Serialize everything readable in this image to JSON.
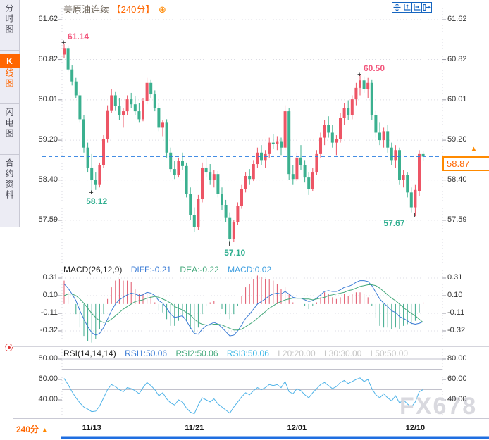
{
  "sidebar": {
    "tabs": [
      {
        "label": "分时图",
        "selected": false
      },
      {
        "label": "K线图",
        "label_head": "K",
        "label_rest": "线图",
        "selected": true
      },
      {
        "label": "闪电图",
        "selected": false
      },
      {
        "label": "合约资料",
        "selected": false
      }
    ]
  },
  "header": {
    "symbol": "美原油连续",
    "period_bracket": "【240分】",
    "expand_glyph": "⊕"
  },
  "toolbar": {
    "icons": [
      "crosshair-move-icon",
      "fit-vertical-axis-icon",
      "fit-horizontal-axis-icon",
      "pan-right-icon"
    ]
  },
  "main_panel": {
    "y_labels": [
      "61.62",
      "60.82",
      "60.01",
      "59.20",
      "58.40",
      "57.59"
    ],
    "current_price": "58.87",
    "current_price_arrow": "▲",
    "annotations": [
      {
        "text": "61.14",
        "price": 61.14,
        "index": 0,
        "color": "pink",
        "placement": "above-right"
      },
      {
        "text": "58.12",
        "price": 58.12,
        "index": 7,
        "color": "green",
        "placement": "below-right"
      },
      {
        "text": "57.10",
        "price": 57.1,
        "index": 42,
        "color": "green",
        "placement": "below-right"
      },
      {
        "text": "60.50",
        "price": 60.5,
        "index": 75,
        "color": "pink",
        "placement": "above-right"
      },
      {
        "text": "57.67",
        "price": 57.67,
        "index": 89,
        "color": "green",
        "placement": "below-left"
      }
    ]
  },
  "macd_panel": {
    "title": "MACD(26,12,9)",
    "diff_label": "DIFF:-0.21",
    "dea_label": "DEA:-0.22",
    "macd_label": "MACD:0.02",
    "y_labels": [
      "0.31",
      "0.10",
      "-0.11",
      "-0.32"
    ]
  },
  "rsi_panel": {
    "title": "RSI(14,14,14)",
    "rsi1_label": "RSI1:50.06",
    "rsi2_label": "RSI2:50.06",
    "rsi3_label": "RSI3:50.06",
    "l20_label": "L20:20.00",
    "l30_label": "L30:30.00",
    "l50_label": "L50:50.00",
    "y_labels": [
      "80.00",
      "60.00",
      "40.00"
    ],
    "level_lines": [
      80,
      70,
      50,
      30
    ]
  },
  "bottom_bar": {
    "period_label": "240分",
    "arrow": "▲"
  },
  "watermark": "FX678",
  "colors": {
    "up": "#ed5565",
    "down": "#3bb08f",
    "hist_up": "#e0556a",
    "hist_down": "#3aa98a",
    "diff_line": "#3a7bd5",
    "dea_line": "#45a97c",
    "rsi_line": "#4fb3e8",
    "dashed_line": "#2a7de1",
    "accent_orange": "#ff6600",
    "annotation_pink": "#f2567c",
    "annotation_green": "#2fae8f"
  },
  "chart_data": {
    "type": "candlestick",
    "symbol": "美原油连续",
    "interval": "240分",
    "x_ticks": [
      {
        "label": "11/13",
        "index": 7
      },
      {
        "label": "11/21",
        "index": 33
      },
      {
        "label": "12/01",
        "index": 59
      },
      {
        "label": "12/10",
        "index": 89
      }
    ],
    "y_range": [
      57.59,
      61.62
    ],
    "ohlc": [
      [
        60.92,
        61.14,
        60.85,
        61.05
      ],
      [
        61.05,
        61.1,
        60.58,
        60.62
      ],
      [
        60.62,
        60.7,
        60.3,
        60.38
      ],
      [
        60.38,
        60.45,
        60.05,
        60.1
      ],
      [
        60.1,
        60.18,
        59.55,
        59.62
      ],
      [
        59.62,
        59.7,
        58.95,
        59.05
      ],
      [
        59.05,
        59.15,
        58.55,
        58.65
      ],
      [
        58.65,
        58.92,
        58.12,
        58.4
      ],
      [
        58.4,
        58.55,
        58.2,
        58.3
      ],
      [
        58.3,
        58.75,
        58.25,
        58.7
      ],
      [
        58.7,
        59.3,
        58.65,
        59.22
      ],
      [
        59.22,
        59.9,
        59.15,
        59.8
      ],
      [
        59.8,
        60.22,
        59.75,
        60.1
      ],
      [
        60.1,
        60.18,
        59.8,
        59.88
      ],
      [
        59.88,
        60.05,
        59.6,
        59.7
      ],
      [
        59.7,
        59.85,
        59.45,
        59.78
      ],
      [
        59.78,
        60.1,
        59.7,
        60.02
      ],
      [
        60.02,
        60.15,
        59.85,
        59.92
      ],
      [
        59.92,
        60.08,
        59.7,
        59.78
      ],
      [
        59.78,
        59.95,
        59.55,
        59.62
      ],
      [
        59.62,
        60.05,
        59.58,
        59.98
      ],
      [
        59.98,
        60.45,
        59.92,
        60.35
      ],
      [
        60.35,
        60.42,
        60.05,
        60.12
      ],
      [
        60.12,
        60.2,
        59.78,
        59.85
      ],
      [
        59.85,
        59.95,
        59.38,
        59.45
      ],
      [
        59.45,
        59.6,
        59.28,
        59.55
      ],
      [
        59.55,
        59.62,
        58.85,
        58.95
      ],
      [
        58.95,
        59.05,
        58.55,
        58.62
      ],
      [
        58.62,
        58.78,
        58.42,
        58.5
      ],
      [
        58.5,
        58.85,
        58.45,
        58.78
      ],
      [
        58.78,
        58.95,
        58.6,
        58.68
      ],
      [
        58.68,
        58.75,
        58.05,
        58.12
      ],
      [
        58.12,
        58.25,
        57.6,
        57.7
      ],
      [
        57.7,
        57.85,
        57.35,
        57.45
      ],
      [
        57.45,
        58.1,
        57.4,
        58.02
      ],
      [
        58.02,
        58.75,
        57.95,
        58.65
      ],
      [
        58.65,
        58.85,
        58.45,
        58.55
      ],
      [
        58.55,
        58.72,
        58.3,
        58.4
      ],
      [
        58.4,
        58.6,
        58.25,
        58.52
      ],
      [
        58.52,
        58.58,
        58.05,
        58.12
      ],
      [
        58.12,
        58.25,
        57.8,
        57.9
      ],
      [
        57.9,
        58.0,
        57.55,
        57.65
      ],
      [
        57.65,
        57.75,
        57.1,
        57.22
      ],
      [
        57.22,
        57.6,
        57.15,
        57.55
      ],
      [
        57.55,
        57.95,
        57.5,
        57.88
      ],
      [
        57.88,
        58.3,
        57.82,
        58.22
      ],
      [
        58.22,
        58.55,
        58.15,
        58.48
      ],
      [
        58.48,
        58.62,
        58.3,
        58.42
      ],
      [
        58.42,
        58.8,
        58.38,
        58.72
      ],
      [
        58.72,
        59.05,
        58.65,
        58.95
      ],
      [
        58.95,
        59.1,
        58.7,
        58.8
      ],
      [
        58.8,
        59.0,
        58.65,
        58.92
      ],
      [
        58.92,
        59.25,
        58.85,
        59.15
      ],
      [
        59.15,
        59.32,
        59.02,
        59.12
      ],
      [
        59.12,
        59.28,
        59.0,
        59.18
      ],
      [
        59.18,
        59.25,
        58.9,
        59.05
      ],
      [
        59.05,
        59.9,
        59.0,
        59.78
      ],
      [
        59.78,
        59.85,
        58.4,
        58.52
      ],
      [
        58.52,
        58.7,
        58.3,
        58.42
      ],
      [
        58.42,
        58.95,
        58.38,
        58.85
      ],
      [
        58.85,
        59.1,
        58.6,
        58.7
      ],
      [
        58.7,
        58.8,
        58.35,
        58.45
      ],
      [
        58.45,
        58.55,
        58.1,
        58.22
      ],
      [
        58.22,
        58.65,
        58.18,
        58.55
      ],
      [
        58.55,
        59.0,
        58.5,
        58.92
      ],
      [
        58.92,
        59.35,
        58.85,
        59.25
      ],
      [
        59.25,
        59.6,
        59.1,
        59.5
      ],
      [
        59.5,
        59.68,
        59.25,
        59.35
      ],
      [
        59.35,
        59.5,
        59.05,
        59.15
      ],
      [
        59.15,
        59.3,
        58.9,
        59.22
      ],
      [
        59.22,
        59.75,
        59.15,
        59.65
      ],
      [
        59.65,
        59.95,
        59.5,
        59.85
      ],
      [
        59.85,
        60.0,
        59.6,
        59.7
      ],
      [
        59.7,
        60.1,
        59.62,
        60.02
      ],
      [
        60.02,
        60.35,
        59.9,
        60.25
      ],
      [
        60.25,
        60.5,
        60.1,
        60.4
      ],
      [
        60.4,
        60.48,
        60.15,
        60.22
      ],
      [
        60.22,
        60.45,
        60.05,
        60.35
      ],
      [
        60.35,
        60.42,
        59.6,
        59.7
      ],
      [
        59.7,
        59.8,
        59.25,
        59.35
      ],
      [
        59.35,
        59.55,
        59.1,
        59.2
      ],
      [
        59.2,
        59.45,
        59.05,
        59.38
      ],
      [
        59.38,
        59.5,
        58.95,
        59.05
      ],
      [
        59.05,
        59.15,
        58.7,
        58.8
      ],
      [
        58.8,
        59.1,
        58.65,
        59.0
      ],
      [
        59.0,
        59.05,
        58.3,
        58.4
      ],
      [
        58.4,
        58.6,
        58.25,
        58.5
      ],
      [
        58.5,
        58.55,
        58.05,
        58.15
      ],
      [
        58.15,
        58.25,
        57.75,
        57.85
      ],
      [
        57.85,
        58.3,
        57.67,
        58.2
      ],
      [
        58.18,
        59.0,
        58.08,
        58.92
      ],
      [
        58.92,
        58.98,
        58.78,
        58.87
      ]
    ],
    "indicators": {
      "macd": {
        "params": [
          26,
          12,
          9
        ],
        "hist_formula": "2*(diff-dea)",
        "last": {
          "diff": -0.21,
          "dea": -0.22,
          "macd": 0.02
        },
        "diff": [
          0.24,
          0.19,
          0.12,
          0.04,
          -0.08,
          -0.18,
          -0.27,
          -0.34,
          -0.37,
          -0.35,
          -0.28,
          -0.18,
          -0.08,
          0.0,
          0.05,
          0.08,
          0.11,
          0.13,
          0.12,
          0.1,
          0.11,
          0.14,
          0.13,
          0.1,
          0.04,
          0.01,
          -0.05,
          -0.12,
          -0.16,
          -0.15,
          -0.14,
          -0.2,
          -0.28,
          -0.35,
          -0.36,
          -0.3,
          -0.26,
          -0.24,
          -0.22,
          -0.24,
          -0.28,
          -0.33,
          -0.38,
          -0.37,
          -0.32,
          -0.25,
          -0.17,
          -0.12,
          -0.06,
          0.0,
          0.03,
          0.06,
          0.1,
          0.12,
          0.13,
          0.12,
          0.15,
          0.12,
          0.08,
          0.07,
          0.07,
          0.05,
          0.03,
          0.04,
          0.07,
          0.11,
          0.15,
          0.16,
          0.15,
          0.15,
          0.17,
          0.2,
          0.21,
          0.23,
          0.26,
          0.28,
          0.28,
          0.27,
          0.22,
          0.14,
          0.06,
          0.01,
          -0.03,
          -0.08,
          -0.1,
          -0.15,
          -0.17,
          -0.2,
          -0.23,
          -0.24,
          -0.23,
          -0.21
        ],
        "dea": [
          0.1,
          0.12,
          0.12,
          0.1,
          0.06,
          0.01,
          -0.05,
          -0.11,
          -0.16,
          -0.2,
          -0.22,
          -0.21,
          -0.18,
          -0.14,
          -0.1,
          -0.06,
          -0.03,
          0.0,
          0.03,
          0.04,
          0.05,
          0.07,
          0.08,
          0.09,
          0.08,
          0.06,
          0.04,
          0.01,
          -0.03,
          -0.05,
          -0.07,
          -0.1,
          -0.13,
          -0.18,
          -0.22,
          -0.24,
          -0.25,
          -0.25,
          -0.24,
          -0.24,
          -0.25,
          -0.27,
          -0.29,
          -0.31,
          -0.31,
          -0.3,
          -0.27,
          -0.24,
          -0.21,
          -0.17,
          -0.13,
          -0.09,
          -0.05,
          -0.02,
          0.01,
          0.03,
          0.05,
          0.06,
          0.07,
          0.07,
          0.07,
          0.06,
          0.06,
          0.05,
          0.06,
          0.07,
          0.08,
          0.1,
          0.11,
          0.12,
          0.13,
          0.14,
          0.16,
          0.17,
          0.19,
          0.21,
          0.22,
          0.23,
          0.23,
          0.22,
          0.19,
          0.15,
          0.11,
          0.07,
          0.04,
          0.0,
          -0.04,
          -0.08,
          -0.11,
          -0.14,
          -0.18,
          -0.22
        ]
      },
      "rsi": {
        "params": [
          14,
          14,
          14
        ],
        "levels": [
          20,
          30,
          50
        ],
        "last": {
          "rsi1": 50.06,
          "rsi2": 50.06,
          "rsi3": 50.06
        },
        "values": [
          61,
          55,
          48,
          42,
          37,
          33,
          31,
          28.5,
          29,
          34,
          42,
          50,
          55,
          53,
          50,
          48,
          52,
          51,
          49,
          46,
          52,
          57,
          54,
          50,
          44,
          47,
          41,
          37,
          35,
          40,
          38,
          32,
          28,
          26.5,
          35,
          42,
          40,
          38,
          41,
          36,
          33,
          30,
          27,
          33,
          38,
          43,
          47,
          45,
          49,
          52,
          50,
          52,
          55,
          54,
          55,
          52,
          58,
          48,
          46,
          51,
          49,
          45,
          42,
          47,
          51,
          55,
          57,
          54,
          51,
          53,
          57,
          59,
          56,
          58,
          60,
          61.5,
          58,
          60,
          51,
          45,
          42,
          46,
          42,
          39,
          44,
          37,
          40,
          36,
          33,
          38,
          48,
          50.06
        ]
      }
    },
    "extremes": {
      "high": 61.14,
      "swing_lows": [
        58.12,
        57.1,
        57.67
      ],
      "recent_high": 60.5,
      "last_price": 58.87
    }
  }
}
